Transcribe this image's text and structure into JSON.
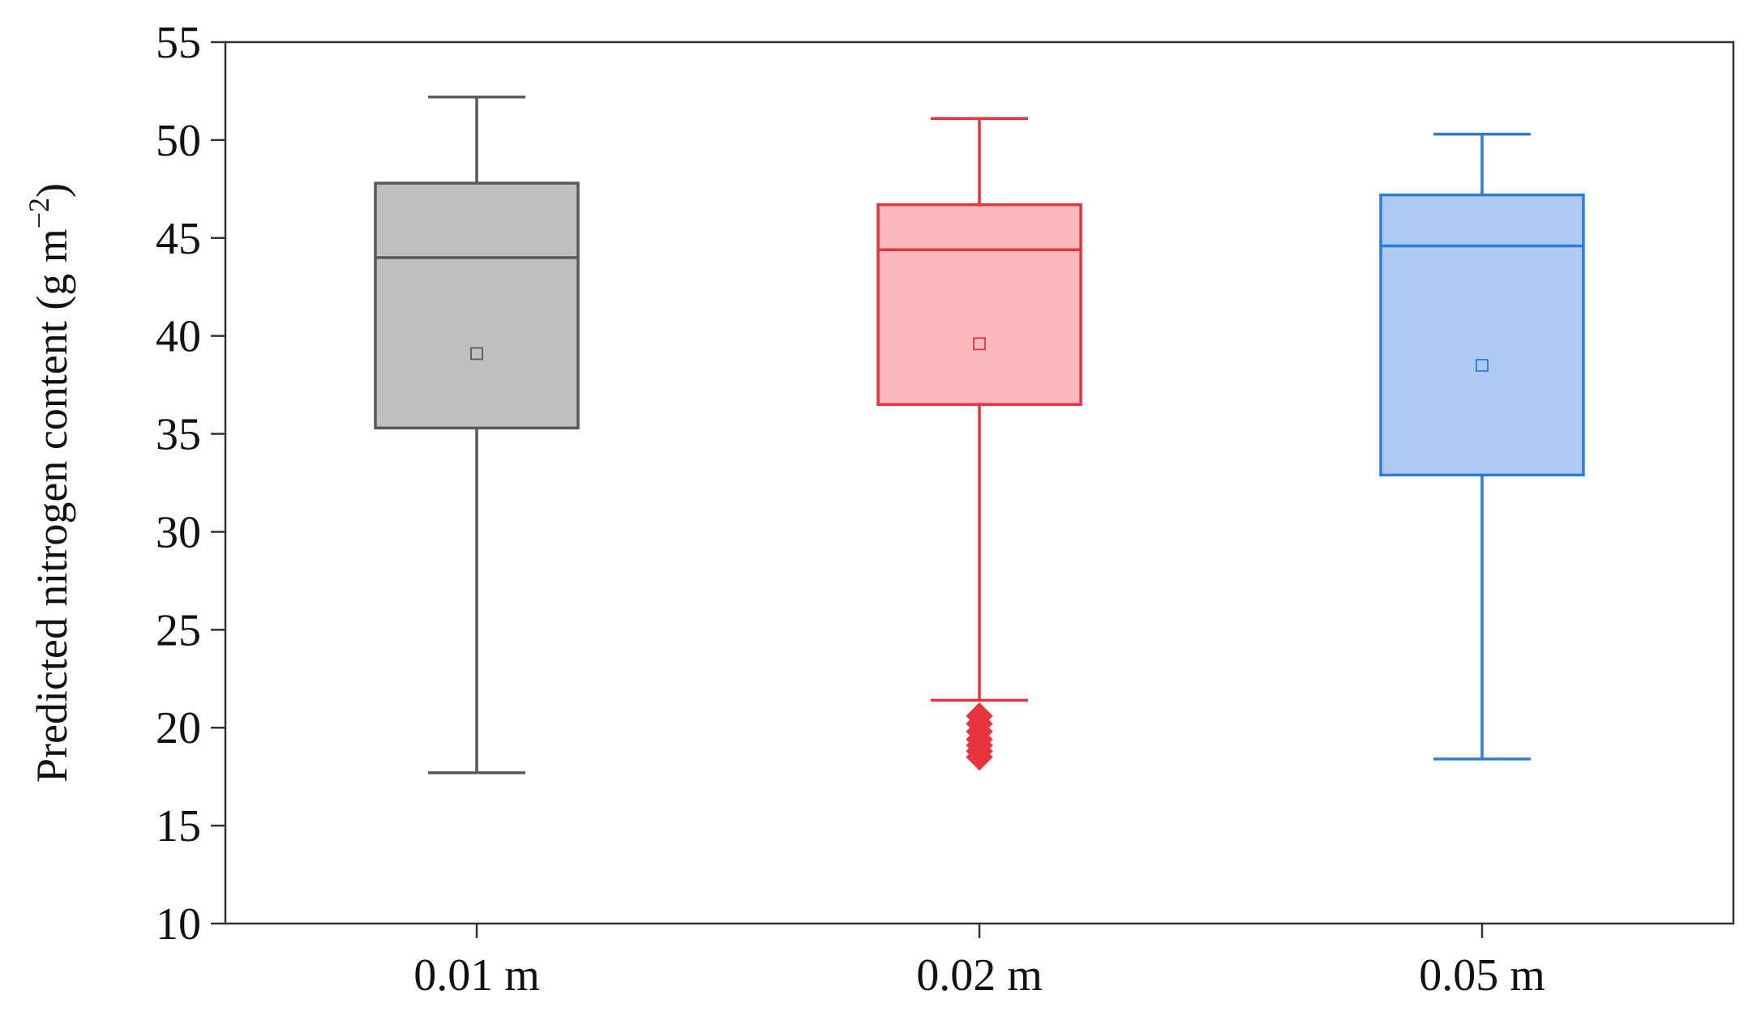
{
  "chart_data": {
    "type": "boxplot",
    "title": "",
    "xlabel": "",
    "ylabel": "Predicted nitrogen content (g m",
    "ylabel_superscript": "−2",
    "ylabel_close": ")",
    "ylim": [
      10,
      55
    ],
    "yticks": [
      10,
      15,
      20,
      25,
      30,
      35,
      40,
      45,
      50,
      55
    ],
    "grid": false,
    "legend": "none",
    "categories": [
      "0.01 m",
      "0.02 m",
      "0.05 m"
    ],
    "series": [
      {
        "whisker_low": 17.7,
        "q1": 35.3,
        "median": 44.0,
        "q3": 47.8,
        "whisker_high": 52.2,
        "mean": 39.1,
        "outliers": [],
        "fill": "#bfbfbf",
        "stroke": "#595959"
      },
      {
        "whisker_low": 21.4,
        "q1": 36.5,
        "median": 44.4,
        "q3": 46.7,
        "whisker_high": 51.1,
        "mean": 39.6,
        "outliers": [
          20.6,
          20.2,
          19.8,
          19.4,
          19.1,
          18.8,
          18.5
        ],
        "fill": "#f9b9bd",
        "stroke": "#e8333c"
      },
      {
        "whisker_low": 18.4,
        "q1": 32.9,
        "median": 44.6,
        "q3": 47.2,
        "whisker_high": 50.3,
        "mean": 38.5,
        "outliers": [],
        "fill": "#aec9f2",
        "stroke": "#2e7bdc"
      }
    ]
  }
}
